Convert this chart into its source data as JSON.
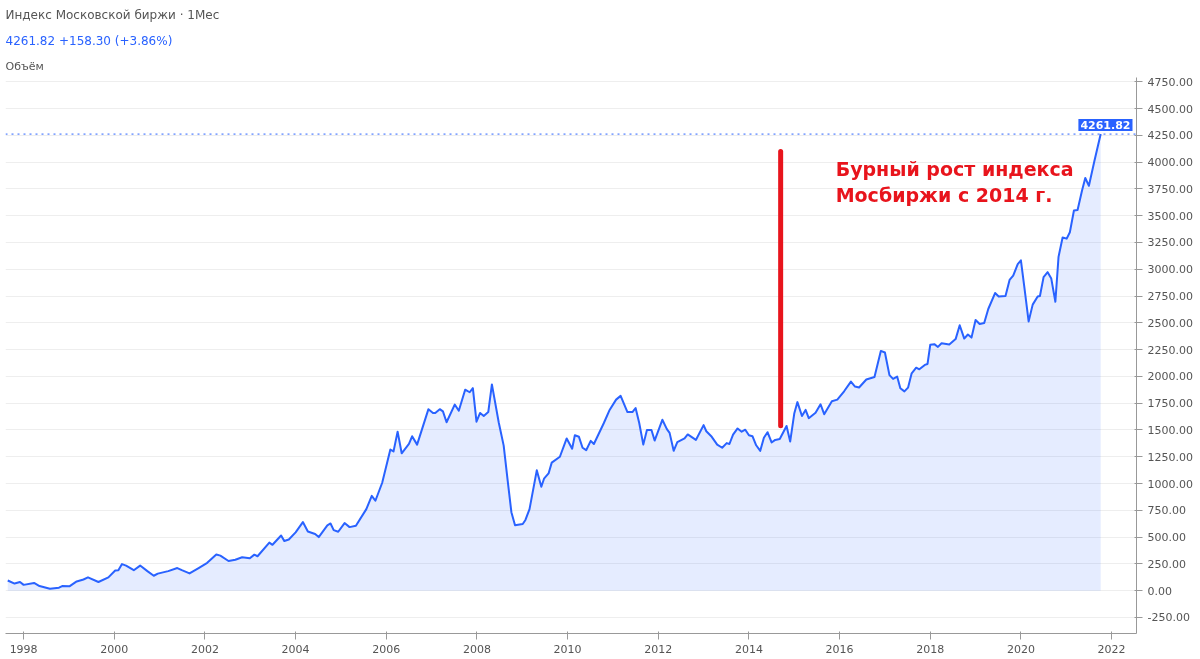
{
  "chart_data": {
    "type": "area",
    "title": "Индекс Московской биржи · 1Мес",
    "subtitle": "4261.82 +158.30 (+3.86%)",
    "annotations": [
      "Объём",
      "Бурный рост индекса\nМосбиржи с 2014 г."
    ],
    "series": [
      {
        "type": "line",
        "color": "#e8141c",
        "x": [
          2014.7,
          2014.7
        ],
        "values": [
          1540,
          4100
        ]
      },
      {
        "color": "#2962ff",
        "x": [
          1997.65,
          1997.8,
          1997.92,
          1998.0,
          1998.23,
          1998.35,
          1998.58,
          1998.78,
          1998.85,
          1999.01,
          1999.17,
          1999.32,
          1999.42,
          1999.65,
          1999.87,
          2000.02,
          2000.09,
          2000.17,
          2000.26,
          2000.43,
          2000.57,
          2000.73,
          2000.87,
          2000.96,
          2001.19,
          2001.39,
          2001.49,
          2001.66,
          2001.86,
          2002.05,
          2002.25,
          2002.34,
          2002.52,
          2002.67,
          2002.82,
          2002.99,
          2003.09,
          2003.16,
          2003.42,
          2003.49,
          2003.68,
          2003.75,
          2003.85,
          2004.0,
          2004.16,
          2004.27,
          2004.43,
          2004.51,
          2004.7,
          2004.77,
          2004.84,
          2004.94,
          2005.08,
          2005.19,
          2005.33,
          2005.56,
          2005.68,
          2005.76,
          2005.91,
          2006.09,
          2006.16,
          2006.25,
          2006.34,
          2006.5,
          2006.57,
          2006.68,
          2006.93,
          2007.03,
          2007.08,
          2007.18,
          2007.25,
          2007.33,
          2007.51,
          2007.6,
          2007.74,
          2007.84,
          2007.91,
          2007.99,
          2008.07,
          2008.15,
          2008.25,
          2008.33,
          2008.48,
          2008.59,
          2008.68,
          2008.76,
          2008.84,
          2009.01,
          2009.07,
          2009.16,
          2009.32,
          2009.42,
          2009.48,
          2009.58,
          2009.65,
          2009.83,
          2009.98,
          2010.1,
          2010.16,
          2010.25,
          2010.33,
          2010.41,
          2010.51,
          2010.58,
          2010.8,
          2010.92,
          2011.07,
          2011.17,
          2011.32,
          2011.43,
          2011.5,
          2011.58,
          2011.67,
          2011.75,
          2011.85,
          2011.92,
          2012.09,
          2012.19,
          2012.25,
          2012.34,
          2012.42,
          2012.58,
          2012.65,
          2012.83,
          2013.0,
          2013.06,
          2013.18,
          2013.3,
          2013.41,
          2013.51,
          2013.57,
          2013.65,
          2013.75,
          2013.84,
          2013.92,
          2014.0,
          2014.08,
          2014.16,
          2014.25,
          2014.33,
          2014.41,
          2014.5,
          2014.58,
          2014.68,
          2014.83,
          2014.91,
          2015.0,
          2015.07,
          2015.17,
          2015.25,
          2015.32,
          2015.47,
          2015.58,
          2015.66,
          2015.83,
          2015.95,
          2016.1,
          2016.25,
          2016.34,
          2016.43,
          2016.59,
          2016.77,
          2016.91,
          2017.0,
          2017.1,
          2017.18,
          2017.27,
          2017.34,
          2017.43,
          2017.51,
          2017.59,
          2017.69,
          2017.76,
          2017.88,
          2017.94,
          2018.0,
          2018.09,
          2018.17,
          2018.25,
          2018.42,
          2018.56,
          2018.65,
          2018.75,
          2018.83,
          2018.91,
          2019.0,
          2019.09,
          2019.19,
          2019.28,
          2019.43,
          2019.51,
          2019.66,
          2019.75,
          2019.83,
          2019.93,
          2020.0,
          2020.08,
          2020.17,
          2020.26,
          2020.37,
          2020.42,
          2020.5,
          2020.59,
          2020.67,
          2020.76,
          2020.83,
          2020.92,
          2021.01,
          2021.08,
          2021.17,
          2021.25,
          2021.35,
          2021.42,
          2021.5,
          2021.62,
          2021.76
        ],
        "values": [
          95,
          66,
          81,
          54,
          72,
          43,
          17,
          28,
          43,
          40,
          86,
          104,
          124,
          81,
          124,
          188,
          191,
          248,
          234,
          191,
          234,
          182,
          139,
          159,
          182,
          211,
          191,
          161,
          211,
          260,
          338,
          327,
          277,
          289,
          312,
          303,
          336,
          321,
          448,
          428,
          515,
          463,
          477,
          544,
          640,
          552,
          529,
          500,
          610,
          627,
          565,
          550,
          631,
          593,
          605,
          761,
          885,
          839,
          1007,
          1317,
          1300,
          1484,
          1282,
          1369,
          1441,
          1363,
          1694,
          1659,
          1659,
          1694,
          1673,
          1572,
          1737,
          1679,
          1876,
          1852,
          1890,
          1577,
          1659,
          1630,
          1667,
          1925,
          1572,
          1354,
          1021,
          732,
          610,
          622,
          660,
          761,
          1123,
          970,
          1045,
          1094,
          1195,
          1250,
          1421,
          1325,
          1450,
          1436,
          1334,
          1311,
          1398,
          1369,
          1565,
          1681,
          1783,
          1818,
          1667,
          1667,
          1705,
          1565,
          1363,
          1499,
          1499,
          1401,
          1595,
          1508,
          1473,
          1305,
          1386,
          1421,
          1458,
          1407,
          1545,
          1488,
          1436,
          1363,
          1334,
          1377,
          1369,
          1456,
          1514,
          1484,
          1502,
          1450,
          1441,
          1357,
          1305,
          1427,
          1479,
          1383,
          1407,
          1415,
          1537,
          1392,
          1653,
          1760,
          1630,
          1687,
          1610,
          1661,
          1740,
          1647,
          1768,
          1783,
          1861,
          1951,
          1905,
          1896,
          1971,
          1994,
          2238,
          2223,
          2012,
          1977,
          1998,
          1889,
          1860,
          1895,
          2029,
          2081,
          2066,
          2107,
          2116,
          2295,
          2301,
          2275,
          2310,
          2298,
          2348,
          2477,
          2353,
          2391,
          2362,
          2527,
          2489,
          2499,
          2629,
          2778,
          2745,
          2751,
          2900,
          2940,
          3048,
          3083,
          2819,
          2513,
          2670,
          2745,
          2751,
          2927,
          2973,
          2913,
          2697,
          3116,
          3297,
          3286,
          3346,
          3549,
          3554,
          3738,
          3852,
          3779,
          4009,
          4261.82
        ]
      }
    ],
    "xlim": [
      1997.6,
      2022.55
    ],
    "xticks": [
      1998,
      2000,
      2002,
      2004,
      2006,
      2008,
      2010,
      2012,
      2014,
      2016,
      2018,
      2020,
      2022
    ],
    "ylim": [
      -400,
      4790
    ],
    "yticks": [
      {
        "value": -250,
        "label": "-250.00"
      },
      {
        "value": 0,
        "label": "0.00"
      },
      {
        "value": 250,
        "label": "250.00"
      },
      {
        "value": 500,
        "label": "500.00"
      },
      {
        "value": 750,
        "label": "750.00"
      },
      {
        "value": 1000,
        "label": "1000.00"
      },
      {
        "value": 1250,
        "label": "1250.00"
      },
      {
        "value": 1500,
        "label": "1500.00"
      },
      {
        "value": 1750,
        "label": "1750.00"
      },
      {
        "value": 2000,
        "label": "2000.00"
      },
      {
        "value": 2250,
        "label": "2250.00"
      },
      {
        "value": 2500,
        "label": "2500.00"
      },
      {
        "value": 2750,
        "label": "2750.00"
      },
      {
        "value": 3000,
        "label": "3000.00"
      },
      {
        "value": 3250,
        "label": "3250.00"
      },
      {
        "value": 3500,
        "label": "3500.00"
      },
      {
        "value": 3750,
        "label": "3750.00"
      },
      {
        "value": 4000,
        "label": "4000.00"
      },
      {
        "value": 4250,
        "label": "4250.00"
      },
      {
        "value": 4500,
        "label": "4500.00"
      },
      {
        "value": 4750,
        "label": "4750.00"
      }
    ],
    "ref_lines": [
      {
        "axis": "y",
        "value": 4261.82,
        "label": "4261.82",
        "color": "#2962ff",
        "line_style": "dotted"
      }
    ],
    "grid": "y"
  }
}
